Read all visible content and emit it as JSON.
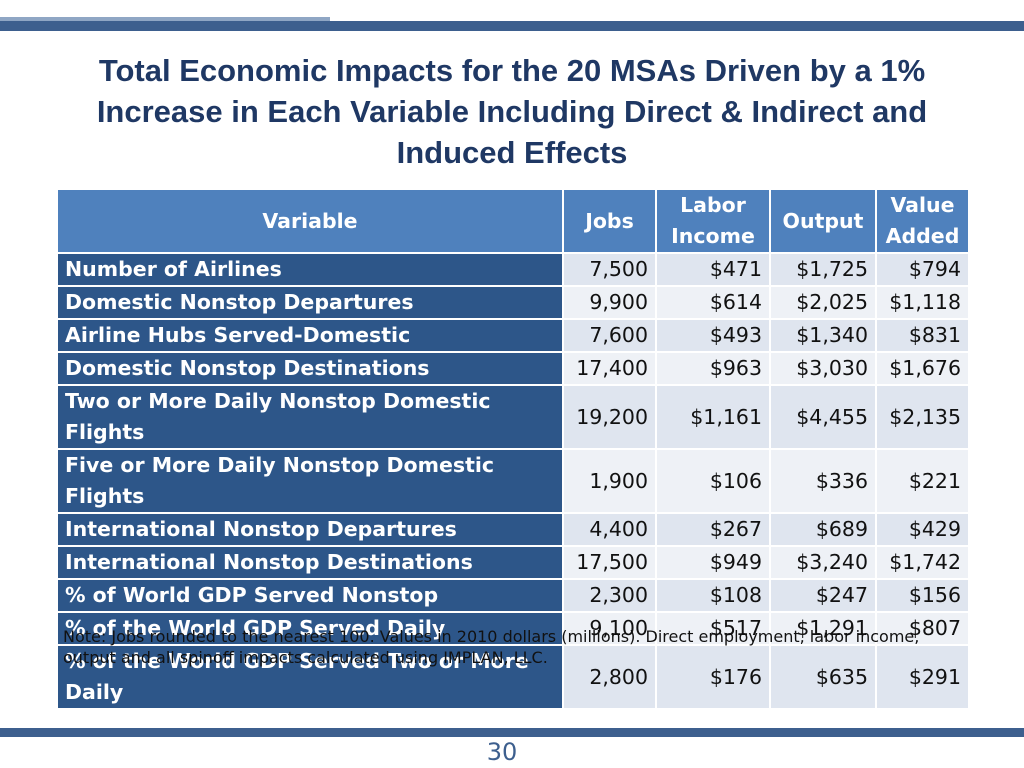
{
  "slide": {
    "title": "Total Economic Impacts for the 20 MSAs Driven by a 1% Increase in Each Variable Including Direct & Indirect and Induced Effects",
    "note": "Note: Jobs rounded to the nearest 100.  Values in 2010 dollars (millions). Direct employment, labor income, output and all spinoff impacts calculated using IMPLAN, LLC.",
    "page_number": "30"
  },
  "table": {
    "headers": {
      "variable": "Variable",
      "jobs": "Jobs",
      "labor_income": "Labor Income",
      "output": "Output",
      "value_added": "Value Added"
    },
    "rows": [
      {
        "variable": "Number of Airlines",
        "jobs": "7,500",
        "labor_income": "$471",
        "output": "$1,725",
        "value_added": "$794"
      },
      {
        "variable": "Domestic Nonstop Departures",
        "jobs": "9,900",
        "labor_income": "$614",
        "output": "$2,025",
        "value_added": "$1,118"
      },
      {
        "variable": "Airline Hubs Served-Domestic",
        "jobs": "7,600",
        "labor_income": "$493",
        "output": "$1,340",
        "value_added": "$831"
      },
      {
        "variable": "Domestic Nonstop Destinations",
        "jobs": "17,400",
        "labor_income": "$963",
        "output": "$3,030",
        "value_added": "$1,676"
      },
      {
        "variable": "Two or More Daily Nonstop Domestic Flights",
        "jobs": "19,200",
        "labor_income": "$1,161",
        "output": "$4,455",
        "value_added": "$2,135"
      },
      {
        "variable": "Five or More Daily Nonstop Domestic Flights",
        "jobs": "1,900",
        "labor_income": "$106",
        "output": "$336",
        "value_added": "$221"
      },
      {
        "variable": "International Nonstop Departures",
        "jobs": "4,400",
        "labor_income": "$267",
        "output": "$689",
        "value_added": "$429"
      },
      {
        "variable": "International Nonstop Destinations",
        "jobs": "17,500",
        "labor_income": "$949",
        "output": "$3,240",
        "value_added": "$1,742"
      },
      {
        "variable": "% of World GDP Served Nonstop",
        "jobs": "2,300",
        "labor_income": "$108",
        "output": "$247",
        "value_added": "$156"
      },
      {
        "variable": "% of the World GDP Served Daily",
        "jobs": "9,100",
        "labor_income": "$517",
        "output": "$1,291",
        "value_added": "$807"
      },
      {
        "variable": "% of the World GDP Served Two or More Daily",
        "jobs": "2,800",
        "labor_income": "$176",
        "output": "$635",
        "value_added": "$291"
      }
    ]
  },
  "colors": {
    "title": "#1f3864",
    "header_bg": "#4f81bd",
    "variable_bg": "#2d5689",
    "row_band_a": "#dfe5ef",
    "row_band_b": "#eef1f6",
    "accent_bar": "#3d5f8e"
  }
}
